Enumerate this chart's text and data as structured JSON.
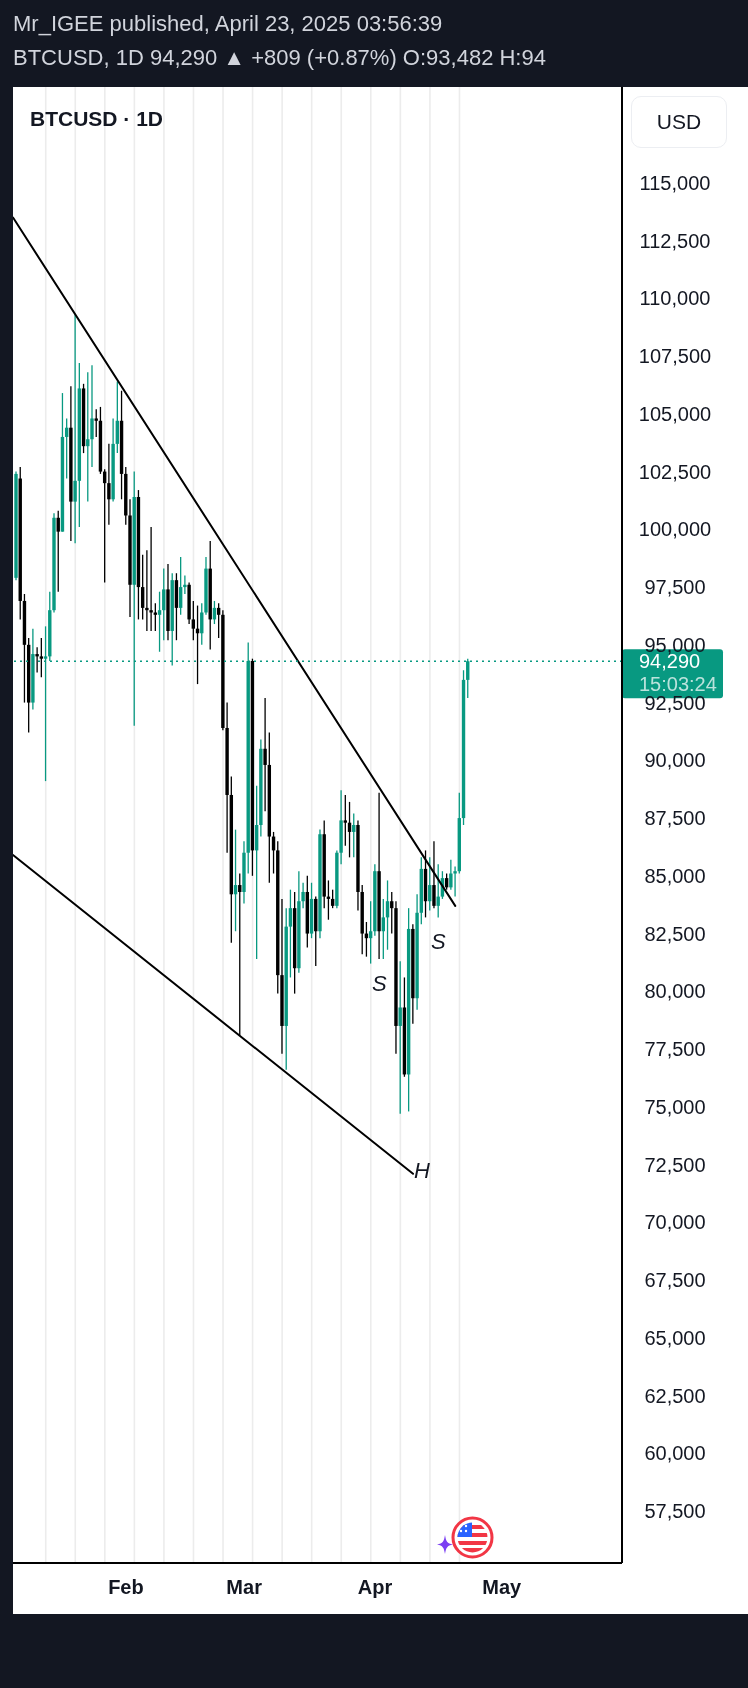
{
  "chart_data": {
    "type": "candlestick",
    "title": "BTCUSD · 1D",
    "ylabel": "USD",
    "x": [
      "2025-01-06",
      "2025-01-07",
      "2025-01-08",
      "2025-01-09",
      "2025-01-10",
      "2025-01-11",
      "2025-01-12",
      "2025-01-13",
      "2025-01-14",
      "2025-01-15",
      "2025-01-16",
      "2025-01-17",
      "2025-01-18",
      "2025-01-19",
      "2025-01-20",
      "2025-01-21",
      "2025-01-22",
      "2025-01-23",
      "2025-01-24",
      "2025-01-25",
      "2025-01-26",
      "2025-01-27",
      "2025-01-28",
      "2025-01-29",
      "2025-01-30",
      "2025-01-31",
      "2025-02-01",
      "2025-02-02",
      "2025-02-03",
      "2025-02-04",
      "2025-02-05",
      "2025-02-06",
      "2025-02-07",
      "2025-02-08",
      "2025-02-09",
      "2025-02-10",
      "2025-02-11",
      "2025-02-12",
      "2025-02-13",
      "2025-02-14",
      "2025-02-15",
      "2025-02-16",
      "2025-02-17",
      "2025-02-18",
      "2025-02-19",
      "2025-02-20",
      "2025-02-21",
      "2025-02-22",
      "2025-02-23",
      "2025-02-24",
      "2025-02-25",
      "2025-02-26",
      "2025-02-27",
      "2025-02-28",
      "2025-03-01",
      "2025-03-02",
      "2025-03-03",
      "2025-03-04",
      "2025-03-05",
      "2025-03-06",
      "2025-03-07",
      "2025-03-08",
      "2025-03-09",
      "2025-03-10",
      "2025-03-11",
      "2025-03-12",
      "2025-03-13",
      "2025-03-14",
      "2025-03-15",
      "2025-03-16",
      "2025-03-17",
      "2025-03-18",
      "2025-03-19",
      "2025-03-20",
      "2025-03-21",
      "2025-03-22",
      "2025-03-23",
      "2025-03-24",
      "2025-03-25",
      "2025-03-26",
      "2025-03-27",
      "2025-03-28",
      "2025-03-29",
      "2025-03-30",
      "2025-03-31",
      "2025-04-01",
      "2025-04-02",
      "2025-04-03",
      "2025-04-04",
      "2025-04-05",
      "2025-04-06",
      "2025-04-07",
      "2025-04-08",
      "2025-04-09",
      "2025-04-10",
      "2025-04-11",
      "2025-04-12",
      "2025-04-13",
      "2025-04-14",
      "2025-04-15",
      "2025-04-16",
      "2025-04-17",
      "2025-04-18",
      "2025-04-19",
      "2025-04-20",
      "2025-04-21",
      "2025-04-22",
      "2025-04-23"
    ],
    "ohlc": [
      [
        97900,
        102500,
        97800,
        102400
      ],
      [
        102200,
        102700,
        96100,
        96900
      ],
      [
        96900,
        97200,
        92500,
        95000
      ],
      [
        95000,
        95300,
        91200,
        92500
      ],
      [
        92500,
        95700,
        92200,
        94600
      ],
      [
        94600,
        94900,
        93800,
        94500
      ],
      [
        94500,
        95300,
        93600,
        94400
      ],
      [
        94400,
        95800,
        89100,
        94500
      ],
      [
        94500,
        97300,
        94300,
        96500
      ],
      [
        96500,
        100700,
        96400,
        100500
      ],
      [
        100500,
        100800,
        97300,
        99900
      ],
      [
        99900,
        105900,
        99900,
        104000
      ],
      [
        104000,
        104800,
        102200,
        104400
      ],
      [
        104400,
        106200,
        99500,
        101200
      ],
      [
        101200,
        109300,
        99400,
        102100
      ],
      [
        102100,
        107200,
        100100,
        106100
      ],
      [
        106100,
        106300,
        103300,
        103600
      ],
      [
        103600,
        106800,
        101200,
        103900
      ],
      [
        103900,
        107100,
        102700,
        104800
      ],
      [
        104800,
        105200,
        104000,
        104700
      ],
      [
        104700,
        105300,
        102400,
        102500
      ],
      [
        102500,
        102600,
        97700,
        102000
      ],
      [
        102000,
        103700,
        100200,
        101300
      ],
      [
        101300,
        104800,
        101200,
        103700
      ],
      [
        103700,
        106400,
        103300,
        104700
      ],
      [
        104700,
        106000,
        101300,
        102400
      ],
      [
        102400,
        102700,
        100200,
        100600
      ],
      [
        100600,
        101300,
        96200,
        97600
      ],
      [
        97600,
        102500,
        91500,
        101400
      ],
      [
        101400,
        101700,
        96100,
        97500
      ],
      [
        97500,
        98900,
        96100,
        96600
      ],
      [
        96600,
        99100,
        95600,
        96500
      ],
      [
        96500,
        100100,
        95600,
        96400
      ],
      [
        96400,
        96800,
        95600,
        96300
      ],
      [
        96300,
        97300,
        94700,
        96500
      ],
      [
        96500,
        98300,
        95200,
        97400
      ],
      [
        97400,
        98500,
        95200,
        95600
      ],
      [
        95600,
        98100,
        94100,
        97800
      ],
      [
        97800,
        98100,
        95200,
        96600
      ],
      [
        96600,
        98800,
        96300,
        97500
      ],
      [
        97500,
        98000,
        97200,
        97600
      ],
      [
        97600,
        97700,
        95900,
        96100
      ],
      [
        96100,
        96900,
        95200,
        95700
      ],
      [
        95700,
        96700,
        93300,
        95500
      ],
      [
        95500,
        96800,
        95000,
        96400
      ],
      [
        96400,
        98800,
        96300,
        98300
      ],
      [
        98300,
        99500,
        94800,
        96100
      ],
      [
        96100,
        96900,
        95900,
        96600
      ],
      [
        96600,
        96800,
        95300,
        96300
      ],
      [
        96300,
        96500,
        91300,
        91400
      ],
      [
        91400,
        92500,
        86000,
        88500
      ],
      [
        88500,
        89300,
        82100,
        84200
      ],
      [
        84200,
        87000,
        82600,
        84600
      ],
      [
        84600,
        85100,
        78100,
        84300
      ],
      [
        84300,
        86500,
        83800,
        86000
      ],
      [
        86000,
        95100,
        85100,
        94300
      ],
      [
        94300,
        94400,
        85000,
        86100
      ],
      [
        86100,
        88900,
        81400,
        87200
      ],
      [
        87200,
        90900,
        86700,
        90500
      ],
      [
        90500,
        92700,
        87800,
        89800
      ],
      [
        89800,
        91200,
        84700,
        86700
      ],
      [
        86700,
        86900,
        85100,
        86100
      ],
      [
        86100,
        86500,
        79900,
        80700
      ],
      [
        80700,
        84000,
        77300,
        78500
      ],
      [
        78500,
        83600,
        76600,
        82800
      ],
      [
        82800,
        84400,
        80600,
        83600
      ],
      [
        83600,
        84300,
        79900,
        81000
      ],
      [
        81000,
        85200,
        80800,
        83900
      ],
      [
        83900,
        84700,
        83600,
        84300
      ],
      [
        84300,
        85000,
        81900,
        82500
      ],
      [
        82500,
        84700,
        82300,
        84000
      ],
      [
        84000,
        84100,
        81100,
        82600
      ],
      [
        82600,
        87000,
        82300,
        86800
      ],
      [
        86800,
        87400,
        83600,
        84100
      ],
      [
        84100,
        84800,
        83100,
        84000
      ],
      [
        84000,
        84400,
        83600,
        83700
      ],
      [
        83700,
        86100,
        83600,
        86000
      ],
      [
        86000,
        88700,
        85500,
        87400
      ],
      [
        87400,
        88500,
        86300,
        87300
      ],
      [
        87300,
        88200,
        85800,
        86900
      ],
      [
        86900,
        87700,
        85800,
        87200
      ],
      [
        87200,
        87400,
        83500,
        84300
      ],
      [
        84300,
        84600,
        81600,
        82500
      ],
      [
        82500,
        83000,
        81500,
        82300
      ],
      [
        82300,
        83900,
        81200,
        82600
      ],
      [
        82600,
        85500,
        82400,
        85200
      ],
      [
        85200,
        88600,
        81400,
        82600
      ],
      [
        82600,
        84000,
        81400,
        83200
      ],
      [
        83200,
        84800,
        81800,
        83900
      ],
      [
        83900,
        84300,
        82500,
        83600
      ],
      [
        83600,
        83900,
        77300,
        78500
      ],
      [
        78500,
        81300,
        74700,
        79300
      ],
      [
        79300,
        80600,
        76300,
        76400
      ],
      [
        76400,
        83600,
        74800,
        82700
      ],
      [
        82700,
        82900,
        78600,
        79700
      ],
      [
        79700,
        84200,
        79200,
        83400
      ],
      [
        83400,
        85800,
        82900,
        85300
      ],
      [
        85300,
        86100,
        83200,
        83900
      ],
      [
        83900,
        85800,
        83500,
        84600
      ],
      [
        84600,
        86500,
        83600,
        83700
      ],
      [
        83700,
        85500,
        83200,
        84100
      ],
      [
        84100,
        85200,
        84000,
        84900
      ],
      [
        84900,
        85100,
        84400,
        84500
      ],
      [
        84500,
        85700,
        84400,
        85100
      ],
      [
        85100,
        85400,
        84100,
        85200
      ],
      [
        85200,
        88600,
        85100,
        87500
      ],
      [
        87500,
        93900,
        87200,
        93482
      ],
      [
        93482,
        94400,
        92700,
        94290
      ]
    ],
    "colors": [
      "#089981",
      "#000000",
      "#000000",
      "#000000",
      "#089981",
      "#000000",
      "#000000",
      "#089981",
      "#089981",
      "#089981",
      "#000000",
      "#089981",
      "#089981",
      "#000000",
      "#089981",
      "#089981",
      "#000000",
      "#089981",
      "#089981",
      "#000000",
      "#000000",
      "#000000",
      "#000000",
      "#089981",
      "#089981",
      "#000000",
      "#000000",
      "#000000",
      "#089981",
      "#000000",
      "#000000",
      "#000000",
      "#000000",
      "#000000",
      "#089981",
      "#089981",
      "#000000",
      "#089981",
      "#000000",
      "#089981",
      "#089981",
      "#000000",
      "#000000",
      "#000000",
      "#089981",
      "#089981",
      "#000000",
      "#089981",
      "#000000",
      "#000000",
      "#000000",
      "#000000",
      "#089981",
      "#000000",
      "#089981",
      "#089981",
      "#000000",
      "#089981",
      "#089981",
      "#000000",
      "#000000",
      "#000000",
      "#000000",
      "#000000",
      "#089981",
      "#089981",
      "#000000",
      "#089981",
      "#089981",
      "#000000",
      "#089981",
      "#000000",
      "#089981",
      "#000000",
      "#000000",
      "#000000",
      "#089981",
      "#089981",
      "#000000",
      "#000000",
      "#089981",
      "#000000",
      "#000000",
      "#000000",
      "#089981",
      "#089981",
      "#000000",
      "#089981",
      "#089981",
      "#000000",
      "#000000",
      "#089981",
      "#000000",
      "#089981",
      "#000000",
      "#089981",
      "#089981",
      "#000000",
      "#089981",
      "#000000",
      "#089981",
      "#089981",
      "#000000",
      "#089981",
      "#089981",
      "#089981",
      "#089981",
      "#089981"
    ],
    "series": [
      {
        "type": "line",
        "x": [
          "2025-01-05T06:00",
          "2025-04-20"
        ],
        "values": [
          113500,
          83700
        ],
        "color": "#000000"
      },
      {
        "type": "line",
        "x": [
          "2025-01-05T06:00",
          "2025-04-10"
        ],
        "values": [
          85900,
          72100
        ],
        "color": "#000000"
      }
    ],
    "xlim": [
      "2025-01-05T06:00",
      "2025-05-29T12:00"
    ],
    "xticks": [
      {
        "value": "2025-01-13",
        "label": null
      },
      {
        "value": "2025-01-20",
        "label": null
      },
      {
        "value": "2025-01-27",
        "label": null
      },
      {
        "value": "2025-02-01",
        "label": "Feb"
      },
      {
        "value": "2025-02-03",
        "label": null
      },
      {
        "value": "2025-02-10",
        "label": null
      },
      {
        "value": "2025-02-17",
        "label": null
      },
      {
        "value": "2025-02-24",
        "label": null
      },
      {
        "value": "2025-03-01",
        "label": "Mar"
      },
      {
        "value": "2025-03-03",
        "label": null
      },
      {
        "value": "2025-03-10",
        "label": null
      },
      {
        "value": "2025-03-17",
        "label": null
      },
      {
        "value": "2025-03-24",
        "label": null
      },
      {
        "value": "2025-03-31",
        "label": null
      },
      {
        "value": "2025-04-01",
        "label": "Apr"
      },
      {
        "value": "2025-04-07",
        "label": null
      },
      {
        "value": "2025-04-14",
        "label": null
      },
      {
        "value": "2025-04-21",
        "label": null
      },
      {
        "value": "2025-05-01",
        "label": "May"
      }
    ],
    "ylim": [
      55250,
      119150
    ],
    "yticks": [
      {
        "value": 57500,
        "label": "57,500"
      },
      {
        "value": 60000,
        "label": "60,000"
      },
      {
        "value": 62500,
        "label": "62,500"
      },
      {
        "value": 65000,
        "label": "65,000"
      },
      {
        "value": 67500,
        "label": "67,500"
      },
      {
        "value": 70000,
        "label": "70,000"
      },
      {
        "value": 72500,
        "label": "72,500"
      },
      {
        "value": 75000,
        "label": "75,000"
      },
      {
        "value": 77500,
        "label": "77,500"
      },
      {
        "value": 80000,
        "label": "80,000"
      },
      {
        "value": 82500,
        "label": "82,500"
      },
      {
        "value": 85000,
        "label": "85,000"
      },
      {
        "value": 87500,
        "label": "87,500"
      },
      {
        "value": 90000,
        "label": "90,000"
      },
      {
        "value": 92500,
        "label": "92,500"
      },
      {
        "value": 95000,
        "label": "95,000"
      },
      {
        "value": 97500,
        "label": "97,500"
      },
      {
        "value": 100000,
        "label": "100,000"
      },
      {
        "value": 102500,
        "label": "102,500"
      },
      {
        "value": 105000,
        "label": "105,000"
      },
      {
        "value": 107500,
        "label": "107,500"
      },
      {
        "value": 110000,
        "label": "110,000"
      },
      {
        "value": 112500,
        "label": "112,500"
      },
      {
        "value": 115000,
        "label": "115,000"
      }
    ],
    "grid": "x",
    "ref_lines": [
      {
        "axis": "y",
        "value": 94290,
        "label": "94,290",
        "color": "#089981",
        "line_style": "dotted"
      }
    ],
    "annotations": [
      "Mr_IGEE published, April 23, 2025 03:56:39",
      "BTCUSD, 1D 94,290 ▲ +809 (+0.87%) O:93,482 H:94",
      "15:03:24",
      {
        "text": "S",
        "x": "2025-04-02",
        "y": 81400
      },
      {
        "text": "S",
        "x": "2025-04-16",
        "y": 83200
      },
      {
        "text": "H",
        "x": "2025-04-10",
        "y": 72100
      }
    ]
  }
}
